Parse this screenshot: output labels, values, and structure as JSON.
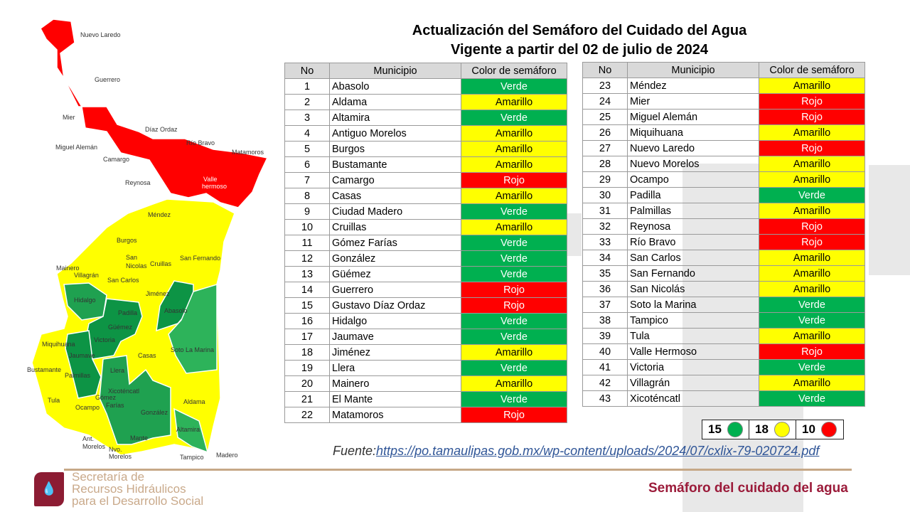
{
  "title": {
    "line1": "Actualización del Semáforo del Cuidado del Agua",
    "line2": "Vigente a partir del 02 de julio de 2024"
  },
  "table_headers": [
    "No",
    "Municipio",
    "Color de semáforo"
  ],
  "colors": {
    "Verde": "#00b050",
    "Amarillo": "#ffff00",
    "Rojo": "#ff0000"
  },
  "table_left": [
    [
      "1",
      "Abasolo",
      "Verde"
    ],
    [
      "2",
      "Aldama",
      "Amarillo"
    ],
    [
      "3",
      "Altamira",
      "Verde"
    ],
    [
      "4",
      "Antiguo Morelos",
      "Amarillo"
    ],
    [
      "5",
      "Burgos",
      "Amarillo"
    ],
    [
      "6",
      "Bustamante",
      "Amarillo"
    ],
    [
      "7",
      "Camargo",
      "Rojo"
    ],
    [
      "8",
      "Casas",
      "Amarillo"
    ],
    [
      "9",
      "Ciudad Madero",
      "Verde"
    ],
    [
      "10",
      "Cruillas",
      "Amarillo"
    ],
    [
      "11",
      "Gómez Farías",
      "Verde"
    ],
    [
      "12",
      "González",
      "Verde"
    ],
    [
      "13",
      "Güémez",
      "Verde"
    ],
    [
      "14",
      "Guerrero",
      "Rojo"
    ],
    [
      "15",
      "Gustavo Díaz Ordaz",
      "Rojo"
    ],
    [
      "16",
      "Hidalgo",
      "Verde"
    ],
    [
      "17",
      "Jaumave",
      "Verde"
    ],
    [
      "18",
      "Jiménez",
      "Amarillo"
    ],
    [
      "19",
      "Llera",
      "Verde"
    ],
    [
      "20",
      "Mainero",
      "Amarillo"
    ],
    [
      "21",
      "El Mante",
      "Verde"
    ],
    [
      "22",
      "Matamoros",
      "Rojo"
    ]
  ],
  "table_right": [
    [
      "23",
      "Méndez",
      "Amarillo"
    ],
    [
      "24",
      "Mier",
      "Rojo"
    ],
    [
      "25",
      "Miguel Alemán",
      "Rojo"
    ],
    [
      "26",
      "Miquihuana",
      "Amarillo"
    ],
    [
      "27",
      "Nuevo Laredo",
      "Rojo"
    ],
    [
      "28",
      "Nuevo Morelos",
      "Amarillo"
    ],
    [
      "29",
      "Ocampo",
      "Amarillo"
    ],
    [
      "30",
      "Padilla",
      "Verde"
    ],
    [
      "31",
      "Palmillas",
      "Amarillo"
    ],
    [
      "32",
      "Reynosa",
      "Rojo"
    ],
    [
      "33",
      "Río Bravo",
      "Rojo"
    ],
    [
      "34",
      "San Carlos",
      "Amarillo"
    ],
    [
      "35",
      "San Fernando",
      "Amarillo"
    ],
    [
      "36",
      "San Nicolás",
      "Amarillo"
    ],
    [
      "37",
      "Soto la Marina",
      "Verde"
    ],
    [
      "38",
      "Tampico",
      "Verde"
    ],
    [
      "39",
      "Tula",
      "Amarillo"
    ],
    [
      "40",
      "Valle Hermoso",
      "Rojo"
    ],
    [
      "41",
      "Victoria",
      "Verde"
    ],
    [
      "42",
      "Villagrán",
      "Amarillo"
    ],
    [
      "43",
      "Xicoténcatl",
      "Verde"
    ]
  ],
  "legend": [
    {
      "count": "15",
      "color": "#00b050"
    },
    {
      "count": "18",
      "color": "#ffff00"
    },
    {
      "count": "10",
      "color": "#ff0000"
    }
  ],
  "source": {
    "label": "Fuente:",
    "url": "https://po.tamaulipas.gob.mx/wp-content/uploads/2024/07/cxlix-79-020724.pdf"
  },
  "footer": {
    "org_line1": "Secretaría de",
    "org_line2": "Recursos Hidráulicos",
    "org_line3": "para el Desarrollo Social",
    "brand": "Semáforo del cuidado del agua",
    "logo_icon": "water-drop-icon"
  },
  "map_labels": [
    "Nuevo Laredo",
    "Guerrero",
    "Mier",
    "Díaz Ordaz",
    "Miguel Alemán",
    "Camargo",
    "Río Bravo",
    "Matamoros",
    "Reynosa",
    "Valle",
    "hermoso",
    "Méndez",
    "Burgos",
    "San",
    "Nicolas",
    "Cruillas",
    "San Fernando",
    "Mainero",
    "Villagrán",
    "San Carlos",
    "Jiménez",
    "Hidalgo",
    "Padilla",
    "Abasolo",
    "Güémez",
    "Victoria",
    "Soto La Marina",
    "Miquihuana",
    "Jaumave",
    "Casas",
    "Bustamante",
    "Palmillas",
    "Llera",
    "Tula",
    "Xicoténcatl",
    "Gómez",
    "Farías",
    "Ocampo",
    "González",
    "Aldama",
    "Ant.",
    "Morelos",
    "Nvo.",
    "Morelos",
    "Mante",
    "Altamira",
    "Tampico",
    "Madero"
  ]
}
